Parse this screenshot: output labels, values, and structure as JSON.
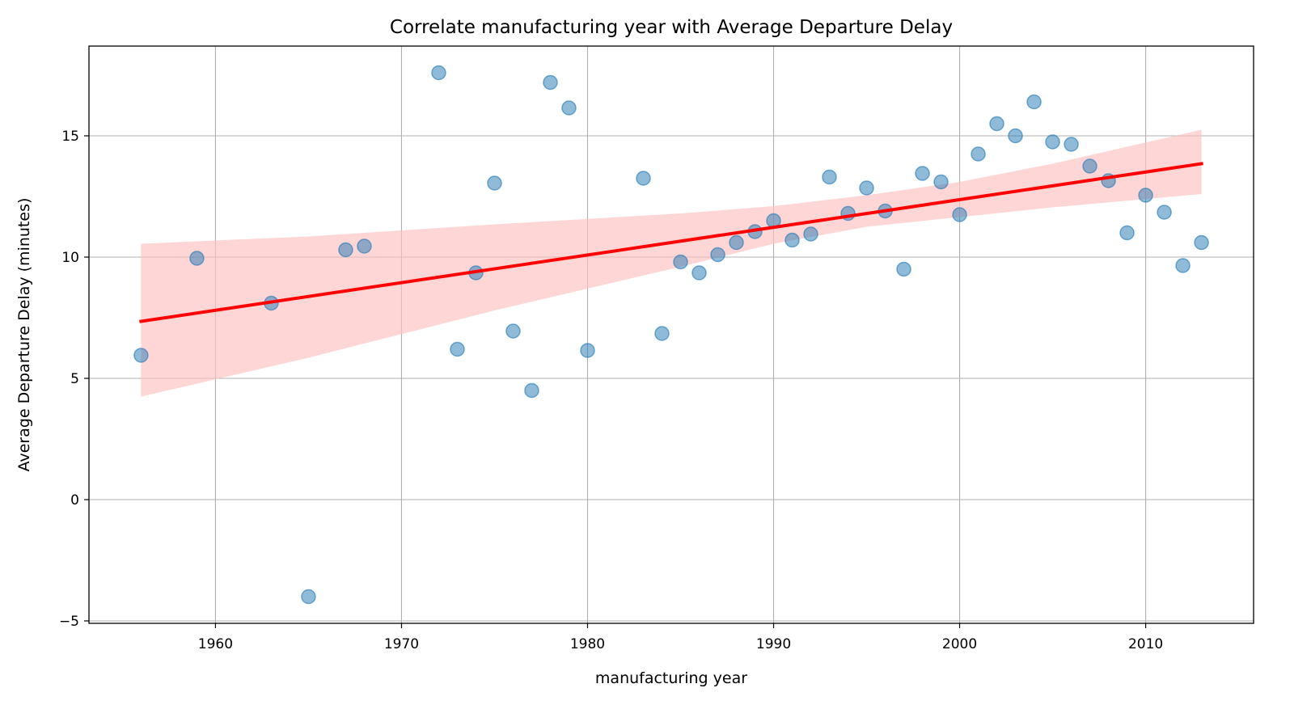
{
  "chart_data": {
    "type": "scatter",
    "title": "Correlate manufacturing year with Average Departure Delay",
    "xlabel": "manufacturing year",
    "ylabel": "Average Departure Delay (minutes)",
    "xlim": [
      1953.2,
      2015.8
    ],
    "ylim": [
      -5.1,
      18.7
    ],
    "xticks": [
      1960,
      1970,
      1980,
      1990,
      2000,
      2010
    ],
    "xtick_labels": [
      "1960",
      "1970",
      "1980",
      "1990",
      "2000",
      "2010"
    ],
    "yticks": [
      -5,
      0,
      5,
      10,
      15
    ],
    "ytick_labels": [
      "−5",
      "0",
      "5",
      "10",
      "15"
    ],
    "grid": true,
    "points": {
      "color": "#1f77b4",
      "x": [
        1956,
        1959,
        1963,
        1965,
        1967,
        1968,
        1972,
        1973,
        1974,
        1975,
        1976,
        1977,
        1978,
        1979,
        1980,
        1983,
        1984,
        1985,
        1986,
        1987,
        1988,
        1989,
        1990,
        1991,
        1992,
        1993,
        1994,
        1995,
        1996,
        1997,
        1998,
        1999,
        2000,
        2001,
        2002,
        2003,
        2004,
        2005,
        2006,
        2007,
        2008,
        2009,
        2010,
        2011,
        2012,
        2013
      ],
      "y": [
        5.95,
        9.95,
        8.1,
        -4.0,
        10.3,
        10.45,
        17.6,
        6.2,
        9.35,
        13.05,
        6.95,
        4.5,
        17.2,
        16.15,
        6.15,
        13.25,
        6.85,
        9.8,
        9.35,
        10.1,
        10.6,
        11.05,
        11.5,
        10.7,
        10.95,
        13.3,
        11.8,
        12.85,
        11.9,
        9.5,
        13.45,
        13.1,
        11.75,
        14.25,
        15.5,
        15.0,
        16.4,
        14.75,
        14.65,
        13.75,
        13.15,
        11.0,
        12.55,
        11.85,
        9.65,
        10.6
      ]
    },
    "regression": {
      "color": "#ff0000",
      "ci_color": "#ffc0c0",
      "x": [
        1956,
        2013
      ],
      "y": [
        7.35,
        13.85
      ],
      "ci_x": [
        1956,
        1965,
        1975,
        1985,
        1990,
        1995,
        2000,
        2005,
        2013
      ],
      "ci_upper": [
        10.55,
        10.85,
        11.35,
        11.8,
        12.1,
        12.55,
        13.1,
        13.85,
        15.25
      ],
      "ci_lower": [
        4.25,
        5.85,
        7.8,
        9.6,
        10.55,
        11.25,
        11.65,
        12.05,
        12.6
      ]
    }
  }
}
